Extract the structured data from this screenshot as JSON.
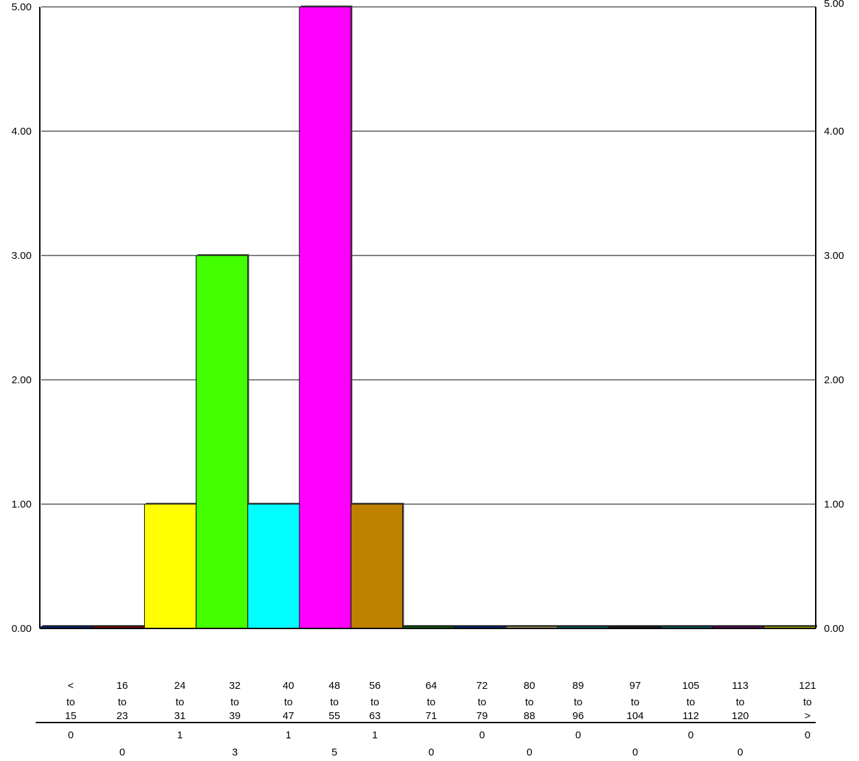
{
  "chart_data": {
    "type": "bar",
    "ylim": [
      0,
      5
    ],
    "yticks": [
      "0.00",
      "1.00",
      "2.00",
      "3.00",
      "4.00",
      "5.00"
    ],
    "categories": [
      {
        "top": "<",
        "mid": "to",
        "bottom": "15",
        "count": "0"
      },
      {
        "top": "16",
        "mid": "to",
        "bottom": "23",
        "count": "0"
      },
      {
        "top": "24",
        "mid": "to",
        "bottom": "31",
        "count": "1"
      },
      {
        "top": "32",
        "mid": "to",
        "bottom": "39",
        "count": "3"
      },
      {
        "top": "40",
        "mid": "to",
        "bottom": "47",
        "count": "1"
      },
      {
        "top": "48",
        "mid": "to",
        "bottom": "55",
        "count": "5"
      },
      {
        "top": "56",
        "mid": "to",
        "bottom": "63",
        "count": "1"
      },
      {
        "top": "64",
        "mid": "to",
        "bottom": "71",
        "count": "0"
      },
      {
        "top": "72",
        "mid": "to",
        "bottom": "79",
        "count": "0"
      },
      {
        "top": "80",
        "mid": "to",
        "bottom": "88",
        "count": "0"
      },
      {
        "top": "89",
        "mid": "to",
        "bottom": "96",
        "count": "0"
      },
      {
        "top": "97",
        "mid": "to",
        "bottom": "104",
        "count": "0"
      },
      {
        "top": "105",
        "mid": "to",
        "bottom": "112",
        "count": "0"
      },
      {
        "top": "113",
        "mid": "to",
        "bottom": "120",
        "count": "0"
      },
      {
        "top": "121",
        "mid": "to",
        "bottom": ">",
        "count": "0"
      }
    ],
    "values": [
      0,
      0,
      1,
      3,
      1,
      5,
      1,
      0,
      0,
      0,
      0,
      0,
      0,
      0,
      0
    ],
    "colors": [
      "#0a2a8a",
      "#8a0a0a",
      "#ffff00",
      "#44ff00",
      "#00ffff",
      "#ff00ff",
      "#c08000",
      "#0a6a0a",
      "#0a2a8a",
      "#b0a060",
      "#0a6a6a",
      "#202020",
      "#0a6a6a",
      "#6a0a6a",
      "#b0b000"
    ],
    "grid": true,
    "legend": "none"
  }
}
